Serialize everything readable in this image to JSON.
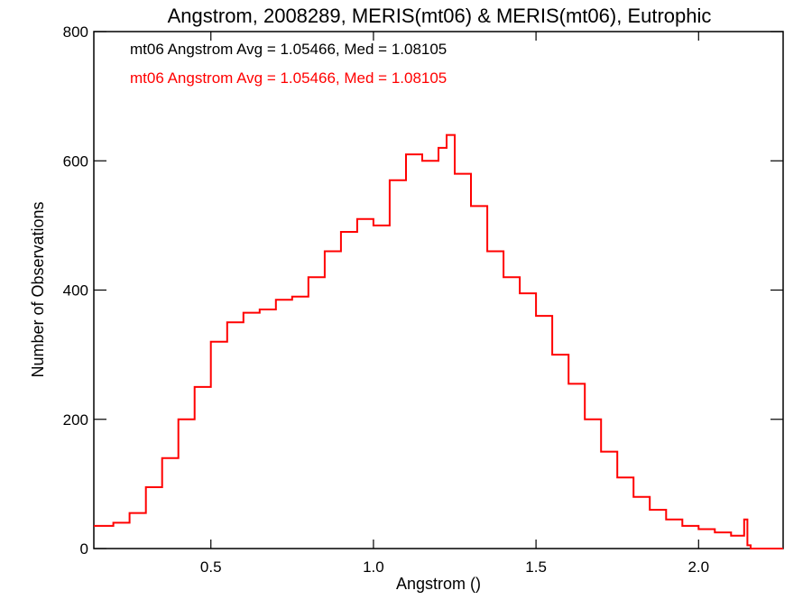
{
  "chart_data": {
    "type": "line",
    "title": "Angstrom, 2008289, MERIS(mt06) & MERIS(mt06), Eutrophic",
    "xlabel": "Angstrom ()",
    "ylabel": "Number of Observations",
    "xlim": [
      0.14,
      2.26
    ],
    "ylim": [
      0,
      800
    ],
    "x_ticks": [
      0.5,
      1.0,
      1.5,
      2.0
    ],
    "x_tick_labels": [
      "0.5",
      "1.0",
      "1.5",
      "2.0"
    ],
    "y_ticks": [
      0,
      200,
      400,
      600,
      800
    ],
    "y_tick_labels": [
      "0",
      "200",
      "400",
      "600",
      "800"
    ],
    "annotations": [
      {
        "text": "mt06 Angstrom Avg = 1.05466, Med = 1.08105",
        "color": "#000000"
      },
      {
        "text": "mt06 Angstrom Avg = 1.05466, Med = 1.08105",
        "color": "#ff0000"
      }
    ],
    "series": [
      {
        "color": "#ff0000",
        "step": true,
        "x": [
          0.14,
          0.2,
          0.25,
          0.3,
          0.35,
          0.4,
          0.45,
          0.5,
          0.55,
          0.6,
          0.65,
          0.7,
          0.75,
          0.8,
          0.85,
          0.9,
          0.95,
          1.0,
          1.05,
          1.1,
          1.15,
          1.2,
          1.225,
          1.25,
          1.3,
          1.35,
          1.4,
          1.45,
          1.5,
          1.55,
          1.6,
          1.65,
          1.7,
          1.75,
          1.8,
          1.85,
          1.9,
          1.95,
          2.0,
          2.05,
          2.1,
          2.14,
          2.15,
          2.16,
          2.26
        ],
        "y": [
          35,
          40,
          55,
          95,
          140,
          200,
          250,
          320,
          350,
          365,
          370,
          385,
          390,
          420,
          460,
          490,
          510,
          500,
          570,
          610,
          600,
          620,
          640,
          580,
          530,
          460,
          420,
          395,
          360,
          300,
          255,
          200,
          150,
          110,
          80,
          60,
          45,
          35,
          30,
          25,
          20,
          45,
          5,
          0,
          0
        ]
      }
    ]
  }
}
